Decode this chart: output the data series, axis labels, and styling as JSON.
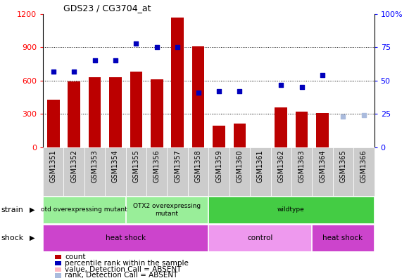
{
  "title": "GDS23 / CG3704_at",
  "samples": [
    "GSM1351",
    "GSM1352",
    "GSM1353",
    "GSM1354",
    "GSM1355",
    "GSM1356",
    "GSM1357",
    "GSM1358",
    "GSM1359",
    "GSM1360",
    "GSM1361",
    "GSM1362",
    "GSM1363",
    "GSM1364",
    "GSM1365",
    "GSM1366"
  ],
  "counts": [
    430,
    590,
    630,
    630,
    680,
    610,
    1165,
    910,
    195,
    215,
    0,
    360,
    320,
    310,
    0,
    0
  ],
  "counts_absent": [
    false,
    false,
    false,
    false,
    false,
    false,
    false,
    false,
    false,
    false,
    false,
    false,
    false,
    false,
    true,
    true
  ],
  "percentile_ranks": [
    57,
    57,
    65,
    65,
    78,
    75,
    75,
    41,
    42,
    42,
    null,
    47,
    45,
    54,
    23,
    24
  ],
  "percentile_absent": [
    false,
    false,
    false,
    false,
    false,
    false,
    false,
    false,
    false,
    false,
    false,
    false,
    false,
    false,
    true,
    true
  ],
  "ylim_left": [
    0,
    1200
  ],
  "ylim_right": [
    0,
    100
  ],
  "yticks_left": [
    0,
    300,
    600,
    900,
    1200
  ],
  "yticks_right": [
    0,
    25,
    50,
    75,
    100
  ],
  "bar_color": "#BB0000",
  "bar_absent_color": "#FFB6C1",
  "dot_color": "#0000BB",
  "dot_absent_color": "#AABBDD",
  "plot_bg": "#FFFFFF",
  "tick_bg": "#CCCCCC",
  "strain_defs": [
    [
      0,
      4,
      "#99EE99",
      "otd overexpressing mutant"
    ],
    [
      4,
      8,
      "#99EE99",
      "OTX2 overexpressing\nmutant"
    ],
    [
      8,
      16,
      "#44CC44",
      "wildtype"
    ]
  ],
  "shock_defs": [
    [
      0,
      8,
      "#CC44CC",
      "heat shock"
    ],
    [
      8,
      13,
      "#EE99EE",
      "control"
    ],
    [
      13,
      16,
      "#CC44CC",
      "heat shock"
    ]
  ]
}
